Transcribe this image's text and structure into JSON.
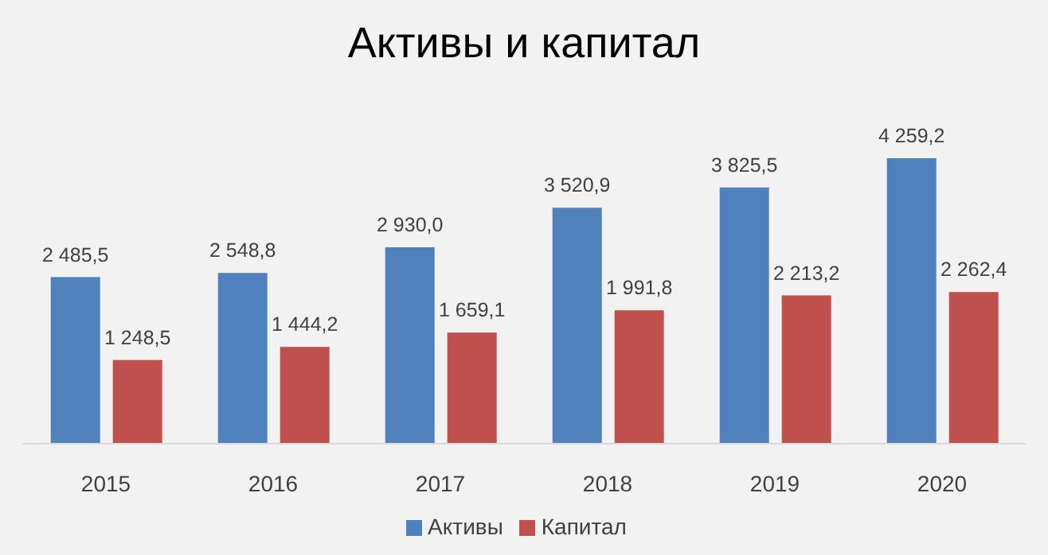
{
  "chart_data": {
    "type": "bar",
    "title": "Активы и капитал",
    "categories": [
      "2015",
      "2016",
      "2017",
      "2018",
      "2019",
      "2020"
    ],
    "series": [
      {
        "name": "Активы",
        "color": "#4f81bd",
        "values": [
          2485.5,
          2548.8,
          2930.0,
          3520.9,
          3825.5,
          4259.2
        ],
        "value_labels": [
          "2 485,5",
          "2 548,8",
          "2 930,0",
          "3 520,9",
          "3 825,5",
          "4 259,2"
        ]
      },
      {
        "name": "Капитал",
        "color": "#c0504d",
        "values": [
          1248.5,
          1444.2,
          1659.1,
          1991.8,
          2213.2,
          2262.4
        ],
        "value_labels": [
          "1 248,5",
          "1 444,2",
          "1 659,1",
          "1 991,8",
          "2 213,2",
          "2 262,4"
        ]
      }
    ],
    "legend": "bottom",
    "grid": false
  }
}
